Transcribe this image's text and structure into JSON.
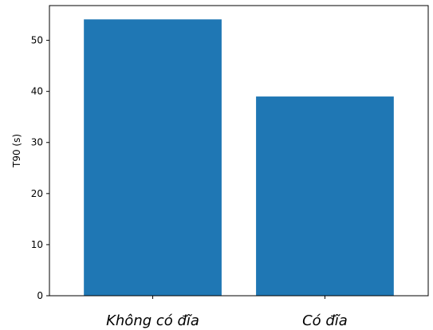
{
  "chart_data": {
    "type": "bar",
    "title": "",
    "xlabel": "",
    "ylabel": "T90 (s)",
    "categories": [
      "Không có đĩa",
      "Có đĩa"
    ],
    "values": [
      54.1,
      39.0
    ],
    "ylim": [
      0,
      56.8
    ],
    "yticks": [
      0,
      10,
      20,
      30,
      40,
      50
    ],
    "grid": false,
    "bar_color": "#1f77b4",
    "axis_color": "#000000"
  }
}
